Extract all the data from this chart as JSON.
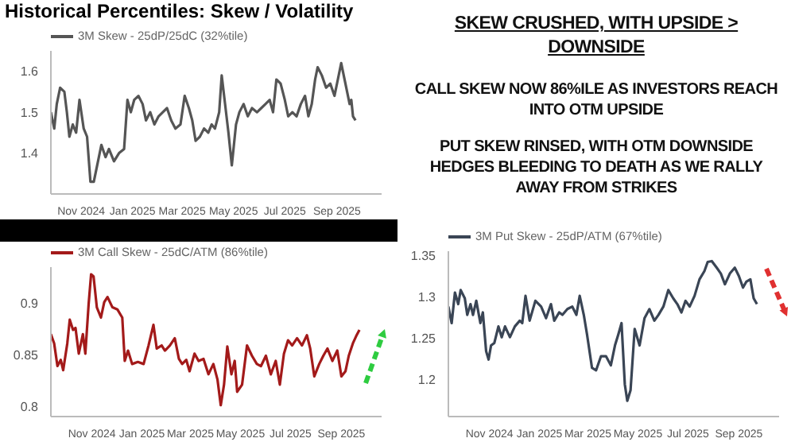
{
  "chart_data": [
    {
      "type": "line",
      "title": "Historical Percentiles: Skew / Volatility",
      "legend": "top left",
      "xlim": [
        "2024-09-26",
        "2025-10-24"
      ],
      "xticks": [
        {
          "value": "2024-11-01",
          "label": "Nov 2024"
        },
        {
          "value": "2025-01-01",
          "label": "Jan 2025"
        },
        {
          "value": "2025-03-01",
          "label": "Mar 2025"
        },
        {
          "value": "2025-05-01",
          "label": "May 2025"
        },
        {
          "value": "2025-07-01",
          "label": "Jul 2025"
        },
        {
          "value": "2025-09-01",
          "label": "Sep 2025"
        }
      ],
      "ylim": [
        1.3,
        1.65
      ],
      "yticks": [
        1.4,
        1.5,
        1.6
      ],
      "x": [
        "2024-09-26",
        "2024-09-30",
        "2024-10-03",
        "2024-10-07",
        "2024-10-12",
        "2024-10-15",
        "2024-10-18",
        "2024-10-22",
        "2024-10-26",
        "2024-10-30",
        "2024-11-04",
        "2024-11-08",
        "2024-11-12",
        "2024-11-16",
        "2024-11-21",
        "2024-11-25",
        "2024-11-30",
        "2024-12-04",
        "2024-12-10",
        "2024-12-16",
        "2024-12-22",
        "2024-12-26",
        "2024-12-30",
        "2025-01-03",
        "2025-01-08",
        "2025-01-13",
        "2025-01-17",
        "2025-01-22",
        "2025-01-27",
        "2025-02-01",
        "2025-02-06",
        "2025-02-11",
        "2025-02-16",
        "2025-02-21",
        "2025-02-27",
        "2025-03-04",
        "2025-03-09",
        "2025-03-13",
        "2025-03-17",
        "2025-03-22",
        "2025-03-27",
        "2025-04-01",
        "2025-04-05",
        "2025-04-09",
        "2025-04-14",
        "2025-04-17",
        "2025-04-21",
        "2025-04-25",
        "2025-04-29",
        "2025-05-04",
        "2025-05-08",
        "2025-05-13",
        "2025-05-18",
        "2025-05-23",
        "2025-05-29",
        "2025-06-03",
        "2025-06-08",
        "2025-06-13",
        "2025-06-17",
        "2025-06-21",
        "2025-06-26",
        "2025-07-01",
        "2025-07-05",
        "2025-07-10",
        "2025-07-15",
        "2025-07-20",
        "2025-07-25",
        "2025-07-29",
        "2025-08-02",
        "2025-08-06",
        "2025-08-09",
        "2025-08-14",
        "2025-08-19",
        "2025-08-24",
        "2025-08-29",
        "2025-09-02",
        "2025-09-06",
        "2025-09-09",
        "2025-09-13",
        "2025-09-16",
        "2025-09-18",
        "2025-09-20",
        "2025-09-23"
      ],
      "series": [
        {
          "name": "3M Skew - 25dP/25dC (32%tile)",
          "color": "#555555",
          "values": [
            1.5,
            1.46,
            1.52,
            1.56,
            1.55,
            1.5,
            1.44,
            1.47,
            1.45,
            1.53,
            1.46,
            1.44,
            1.33,
            1.33,
            1.38,
            1.42,
            1.39,
            1.41,
            1.38,
            1.4,
            1.41,
            1.53,
            1.5,
            1.53,
            1.54,
            1.52,
            1.48,
            1.5,
            1.47,
            1.49,
            1.5,
            1.51,
            1.48,
            1.46,
            1.47,
            1.54,
            1.51,
            1.48,
            1.43,
            1.44,
            1.46,
            1.45,
            1.47,
            1.46,
            1.5,
            1.59,
            1.52,
            1.45,
            1.37,
            1.47,
            1.5,
            1.52,
            1.49,
            1.51,
            1.5,
            1.51,
            1.52,
            1.53,
            1.5,
            1.58,
            1.57,
            1.53,
            1.49,
            1.5,
            1.49,
            1.52,
            1.54,
            1.49,
            1.52,
            1.58,
            1.61,
            1.59,
            1.56,
            1.57,
            1.54,
            1.58,
            1.62,
            1.59,
            1.55,
            1.52,
            1.53,
            1.49,
            1.48
          ]
        }
      ]
    },
    {
      "type": "line",
      "legend": "top left",
      "xlim": [
        "2024-09-12",
        "2025-10-20"
      ],
      "xticks": [
        {
          "value": "2024-11-01",
          "label": "Nov 2024"
        },
        {
          "value": "2025-01-01",
          "label": "Jan 2025"
        },
        {
          "value": "2025-03-01",
          "label": "Mar 2025"
        },
        {
          "value": "2025-05-01",
          "label": "May 2025"
        },
        {
          "value": "2025-07-01",
          "label": "Jul 2025"
        },
        {
          "value": "2025-09-01",
          "label": "Sep 2025"
        }
      ],
      "ylim": [
        0.79,
        0.935
      ],
      "yticks": [
        0.8,
        0.85,
        0.9
      ],
      "x": [
        "2024-09-12",
        "2024-09-16",
        "2024-09-20",
        "2024-09-24",
        "2024-09-27",
        "2024-10-02",
        "2024-10-05",
        "2024-10-09",
        "2024-10-12",
        "2024-10-16",
        "2024-10-21",
        "2024-10-24",
        "2024-10-28",
        "2024-10-31",
        "2024-11-03",
        "2024-11-07",
        "2024-11-12",
        "2024-11-16",
        "2024-11-20",
        "2024-11-26",
        "2024-12-02",
        "2024-12-08",
        "2024-12-11",
        "2024-12-15",
        "2024-12-20",
        "2024-12-27",
        "2025-01-03",
        "2025-01-09",
        "2025-01-15",
        "2025-01-19",
        "2025-01-25",
        "2025-01-29",
        "2025-02-04",
        "2025-02-10",
        "2025-02-15",
        "2025-02-19",
        "2025-02-24",
        "2025-02-28",
        "2025-03-06",
        "2025-03-11",
        "2025-03-17",
        "2025-03-23",
        "2025-03-29",
        "2025-04-03",
        "2025-04-07",
        "2025-04-11",
        "2025-04-15",
        "2025-04-20",
        "2025-04-24",
        "2025-04-27",
        "2025-05-03",
        "2025-05-09",
        "2025-05-15",
        "2025-05-21",
        "2025-05-26",
        "2025-06-01",
        "2025-06-07",
        "2025-06-13",
        "2025-06-18",
        "2025-06-23",
        "2025-06-28",
        "2025-07-03",
        "2025-07-09",
        "2025-07-15",
        "2025-07-21",
        "2025-07-25",
        "2025-07-30",
        "2025-08-05",
        "2025-08-10",
        "2025-08-15",
        "2025-08-21",
        "2025-08-27",
        "2025-09-01",
        "2025-09-06",
        "2025-09-10",
        "2025-09-15",
        "2025-09-19",
        "2025-09-23"
      ],
      "series": [
        {
          "name": "3M Call Skew - 25dC/ATM (86%tile)",
          "color": "#a31a1a",
          "values": [
            0.87,
            0.861,
            0.839,
            0.845,
            0.835,
            0.861,
            0.884,
            0.874,
            0.876,
            0.851,
            0.87,
            0.851,
            0.899,
            0.928,
            0.926,
            0.896,
            0.886,
            0.901,
            0.906,
            0.896,
            0.894,
            0.886,
            0.844,
            0.854,
            0.841,
            0.843,
            0.841,
            0.859,
            0.879,
            0.856,
            0.859,
            0.854,
            0.859,
            0.866,
            0.846,
            0.841,
            0.845,
            0.834,
            0.851,
            0.844,
            0.846,
            0.831,
            0.841,
            0.826,
            0.801,
            0.821,
            0.858,
            0.831,
            0.844,
            0.814,
            0.821,
            0.859,
            0.849,
            0.841,
            0.839,
            0.849,
            0.831,
            0.844,
            0.821,
            0.851,
            0.864,
            0.859,
            0.866,
            0.859,
            0.869,
            0.856,
            0.829,
            0.841,
            0.849,
            0.856,
            0.844,
            0.854,
            0.829,
            0.834,
            0.849,
            0.861,
            0.868,
            0.874
          ]
        }
      ]
    },
    {
      "type": "line",
      "legend": "top left",
      "xlim": [
        "2024-09-12",
        "2025-10-20"
      ],
      "xticks": [
        {
          "value": "2024-11-01",
          "label": "Nov 2024"
        },
        {
          "value": "2025-01-01",
          "label": "Jan 2025"
        },
        {
          "value": "2025-03-01",
          "label": "Mar 2025"
        },
        {
          "value": "2025-05-01",
          "label": "May 2025"
        },
        {
          "value": "2025-07-01",
          "label": "Jul 2025"
        },
        {
          "value": "2025-09-01",
          "label": "Sep 2025"
        }
      ],
      "ylim": [
        1.155,
        1.355
      ],
      "yticks": [
        1.2,
        1.25,
        1.3,
        1.35
      ],
      "x": [
        "2024-09-12",
        "2024-09-16",
        "2024-09-20",
        "2024-09-24",
        "2024-09-27",
        "2024-10-02",
        "2024-10-05",
        "2024-10-09",
        "2024-10-12",
        "2024-10-16",
        "2024-10-21",
        "2024-10-24",
        "2024-10-28",
        "2024-10-31",
        "2024-11-03",
        "2024-11-07",
        "2024-11-12",
        "2024-11-16",
        "2024-11-20",
        "2024-11-26",
        "2024-12-02",
        "2024-12-08",
        "2024-12-11",
        "2024-12-15",
        "2024-12-20",
        "2024-12-27",
        "2025-01-03",
        "2025-01-09",
        "2025-01-15",
        "2025-01-19",
        "2025-01-25",
        "2025-01-29",
        "2025-02-04",
        "2025-02-10",
        "2025-02-15",
        "2025-02-19",
        "2025-02-24",
        "2025-02-28",
        "2025-03-06",
        "2025-03-11",
        "2025-03-17",
        "2025-03-23",
        "2025-03-29",
        "2025-04-03",
        "2025-04-07",
        "2025-04-11",
        "2025-04-15",
        "2025-04-18",
        "2025-04-22",
        "2025-04-27",
        "2025-05-03",
        "2025-05-09",
        "2025-05-15",
        "2025-05-21",
        "2025-05-26",
        "2025-06-01",
        "2025-06-07",
        "2025-06-13",
        "2025-06-18",
        "2025-06-23",
        "2025-06-28",
        "2025-07-03",
        "2025-07-09",
        "2025-07-15",
        "2025-07-21",
        "2025-07-25",
        "2025-07-30",
        "2025-08-05",
        "2025-08-10",
        "2025-08-15",
        "2025-08-21",
        "2025-08-27",
        "2025-09-01",
        "2025-09-06",
        "2025-09-10",
        "2025-09-15",
        "2025-09-19",
        "2025-09-23"
      ],
      "series": [
        {
          "name": "3M Put Skew - 25dP/ATM (67%tile)",
          "color": "#3a4555",
          "values": [
            1.288,
            1.268,
            1.305,
            1.291,
            1.308,
            1.298,
            1.278,
            1.291,
            1.278,
            1.295,
            1.268,
            1.281,
            1.234,
            1.224,
            1.241,
            1.244,
            1.264,
            1.251,
            1.264,
            1.251,
            1.264,
            1.271,
            1.268,
            1.301,
            1.271,
            1.295,
            1.288,
            1.274,
            1.291,
            1.271,
            1.281,
            1.278,
            1.285,
            1.288,
            1.278,
            1.301,
            1.278,
            1.254,
            1.214,
            1.211,
            1.228,
            1.228,
            1.217,
            1.241,
            1.254,
            1.268,
            1.194,
            1.174,
            1.187,
            1.261,
            1.241,
            1.274,
            1.285,
            1.271,
            1.278,
            1.288,
            1.308,
            1.298,
            1.291,
            1.281,
            1.295,
            1.288,
            1.301,
            1.321,
            1.331,
            1.342,
            1.343,
            1.335,
            1.328,
            1.315,
            1.328,
            1.335,
            1.325,
            1.311,
            1.318,
            1.321,
            1.298,
            1.291
          ]
        }
      ]
    },
    {
      "type": "other",
      "title": "SKEW CRUSHED, WITH UPSIDE > DOWNSIDE",
      "annotations": [
        "CALL SKEW NOW 86%ILE AS INVESTORS REACH INTO OTM UPSIDE",
        "PUT SKEW RINSED, WITH OTM DOWNSIDE HEDGES BLEEDING TO DEATH AS WE RALLY AWAY FROM STRIKES"
      ]
    }
  ]
}
